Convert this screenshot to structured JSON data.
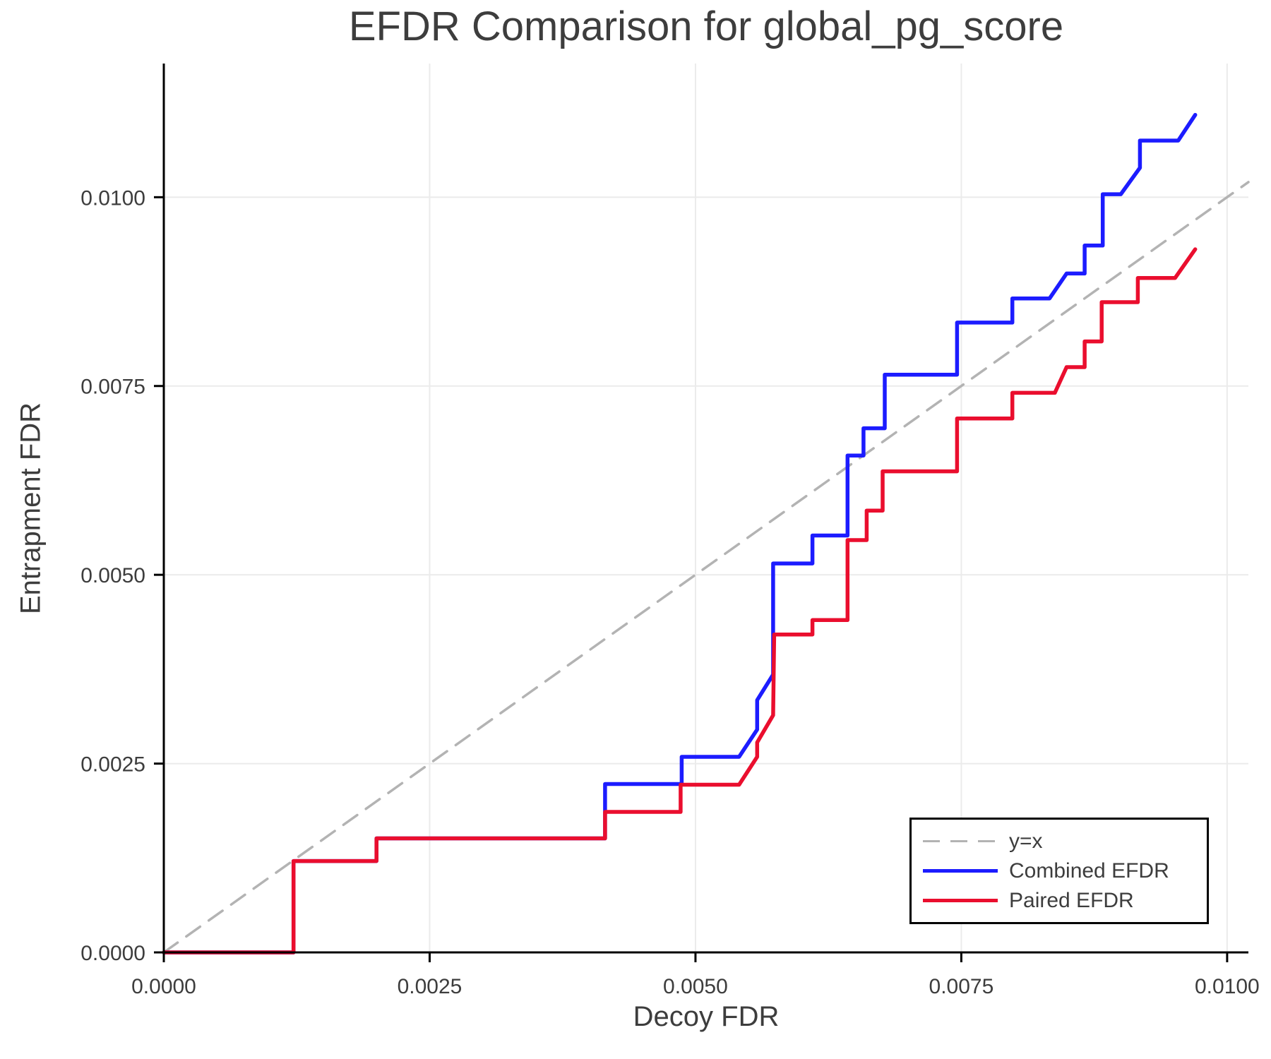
{
  "chart_data": {
    "type": "line",
    "title": "EFDR Comparison for global_pg_score",
    "xlabel": "Decoy FDR",
    "ylabel": "Entrapment FDR",
    "xlim": [
      0,
      0.0102
    ],
    "ylim": [
      0,
      0.01177
    ],
    "grid": true,
    "x_ticks": {
      "values": [
        0,
        0.0025,
        0.005,
        0.0075,
        0.01
      ],
      "labels": [
        "0.0000",
        "0.0025",
        "0.0050",
        "0.0075",
        "0.0100"
      ]
    },
    "y_ticks": {
      "values": [
        0,
        0.0025,
        0.005,
        0.0075,
        0.01
      ],
      "labels": [
        "0.0000",
        "0.0025",
        "0.0050",
        "0.0075",
        "0.0100"
      ]
    },
    "colors": {
      "grid": "#ebebeb",
      "spine": "#000000",
      "text": "#3d3d3d",
      "background": "#ffffff",
      "diagonal": "#b3b3b3",
      "combined": "#1c1cff",
      "paired": "#ea0e2e"
    },
    "legend": {
      "position": "lower right",
      "entries": [
        {
          "label": "y=x",
          "color": "#b3b3b3",
          "style": "dashed"
        },
        {
          "label": "Combined EFDR",
          "color": "#1c1cff",
          "style": "solid"
        },
        {
          "label": "Paired EFDR",
          "color": "#ea0e2e",
          "style": "solid"
        }
      ]
    },
    "series": [
      {
        "name": "y=x",
        "color": "#b3b3b3",
        "dashed": true,
        "points": [
          [
            0,
            0
          ],
          [
            0.0102,
            0.0102
          ]
        ]
      },
      {
        "name": "Combined EFDR",
        "color": "#1c1cff",
        "dashed": false,
        "points": [
          [
            0.0,
            0.0
          ],
          [
            0.00122,
            0.0
          ],
          [
            0.00122,
            0.00121
          ],
          [
            0.002,
            0.00121
          ],
          [
            0.002,
            0.00151
          ],
          [
            0.00415,
            0.00151
          ],
          [
            0.00415,
            0.00223
          ],
          [
            0.00487,
            0.00223
          ],
          [
            0.00487,
            0.00259
          ],
          [
            0.00541,
            0.00259
          ],
          [
            0.00558,
            0.00295
          ],
          [
            0.00558,
            0.00334
          ],
          [
            0.00573,
            0.00368
          ],
          [
            0.00573,
            0.00515
          ],
          [
            0.0061,
            0.00515
          ],
          [
            0.0061,
            0.00552
          ],
          [
            0.00643,
            0.00552
          ],
          [
            0.00643,
            0.00658
          ],
          [
            0.00658,
            0.00658
          ],
          [
            0.00658,
            0.00694
          ],
          [
            0.00678,
            0.00694
          ],
          [
            0.00678,
            0.00765
          ],
          [
            0.00746,
            0.00765
          ],
          [
            0.00746,
            0.00834
          ],
          [
            0.00798,
            0.00834
          ],
          [
            0.00798,
            0.00866
          ],
          [
            0.00833,
            0.00866
          ],
          [
            0.00849,
            0.00899
          ],
          [
            0.00866,
            0.00899
          ],
          [
            0.00866,
            0.00936
          ],
          [
            0.00883,
            0.00936
          ],
          [
            0.00883,
            0.01004
          ],
          [
            0.009,
            0.01004
          ],
          [
            0.00918,
            0.01039
          ],
          [
            0.00918,
            0.01075
          ],
          [
            0.00954,
            0.01075
          ],
          [
            0.0097,
            0.01109
          ]
        ]
      },
      {
        "name": "Paired EFDR",
        "color": "#ea0e2e",
        "dashed": false,
        "points": [
          [
            0.0,
            0.0
          ],
          [
            0.00122,
            0.0
          ],
          [
            0.00122,
            0.00121
          ],
          [
            0.002,
            0.00121
          ],
          [
            0.002,
            0.00151
          ],
          [
            0.00415,
            0.00151
          ],
          [
            0.00415,
            0.00186
          ],
          [
            0.00486,
            0.00186
          ],
          [
            0.00486,
            0.00222
          ],
          [
            0.00541,
            0.00222
          ],
          [
            0.00558,
            0.00259
          ],
          [
            0.00558,
            0.00278
          ],
          [
            0.00573,
            0.00314
          ],
          [
            0.00574,
            0.00421
          ],
          [
            0.0061,
            0.00421
          ],
          [
            0.0061,
            0.0044
          ],
          [
            0.00643,
            0.0044
          ],
          [
            0.00643,
            0.00546
          ],
          [
            0.00661,
            0.00546
          ],
          [
            0.00661,
            0.00585
          ],
          [
            0.00676,
            0.00585
          ],
          [
            0.00676,
            0.00637
          ],
          [
            0.00746,
            0.00637
          ],
          [
            0.00746,
            0.00707
          ],
          [
            0.00798,
            0.00707
          ],
          [
            0.00798,
            0.00741
          ],
          [
            0.00838,
            0.00741
          ],
          [
            0.00849,
            0.00775
          ],
          [
            0.00866,
            0.00775
          ],
          [
            0.00866,
            0.00809
          ],
          [
            0.00882,
            0.00809
          ],
          [
            0.00882,
            0.00861
          ],
          [
            0.00916,
            0.00861
          ],
          [
            0.00916,
            0.00893
          ],
          [
            0.00951,
            0.00893
          ],
          [
            0.0097,
            0.00931
          ]
        ]
      }
    ]
  }
}
